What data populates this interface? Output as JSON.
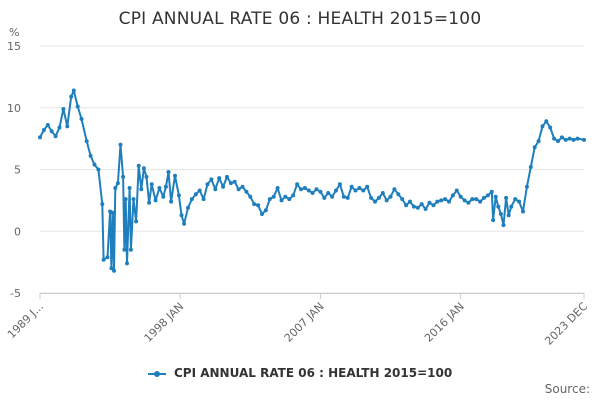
{
  "title": "CPI ANNUAL RATE 06 : HEALTH 2015=100",
  "unit": "%",
  "source_label": "Source:",
  "colors": {
    "series": "#1f7fbd",
    "grid": "#e6e6e6",
    "axis": "#cccccc"
  },
  "chart_data": {
    "type": "line",
    "title": "CPI ANNUAL RATE 06 : HEALTH 2015=100",
    "ylabel": "%",
    "xlabel": "",
    "ylim": [
      -5,
      15
    ],
    "yticks": [
      -5,
      0,
      5,
      10,
      15
    ],
    "xlim": [
      "1989-01",
      "2023-12"
    ],
    "xticks": [
      {
        "date": "1989-01",
        "label": "1989 J..."
      },
      {
        "date": "1998-01",
        "label": "1998 JAN"
      },
      {
        "date": "2007-01",
        "label": "2007 JAN"
      },
      {
        "date": "2016-01",
        "label": "2016 JAN"
      },
      {
        "date": "2023-12",
        "label": "2023 DEC"
      }
    ],
    "grid": true,
    "legend": "bottom",
    "series": [
      {
        "name": "CPI ANNUAL RATE 06 : HEALTH 2015=100",
        "color": "#1f7fbd",
        "points": [
          [
            "1989-01",
            7.6
          ],
          [
            "1989-04",
            8.2
          ],
          [
            "1989-07",
            8.6
          ],
          [
            "1989-10",
            8.1
          ],
          [
            "1990-01",
            7.7
          ],
          [
            "1990-04",
            8.4
          ],
          [
            "1990-07",
            9.9
          ],
          [
            "1990-10",
            8.5
          ],
          [
            "1991-01",
            10.9
          ],
          [
            "1991-03",
            11.4
          ],
          [
            "1991-06",
            10.1
          ],
          [
            "1991-09",
            9.1
          ],
          [
            "1992-01",
            7.3
          ],
          [
            "1992-04",
            6.1
          ],
          [
            "1992-07",
            5.4
          ],
          [
            "1992-10",
            5.0
          ],
          [
            "1993-01",
            2.2
          ],
          [
            "1993-02",
            -2.3
          ],
          [
            "1993-05",
            -2.1
          ],
          [
            "1993-07",
            1.6
          ],
          [
            "1993-08",
            -3.0
          ],
          [
            "1993-09",
            1.5
          ],
          [
            "1993-10",
            -3.2
          ],
          [
            "1993-11",
            3.5
          ],
          [
            "1994-01",
            3.9
          ],
          [
            "1994-03",
            7.0
          ],
          [
            "1994-05",
            4.4
          ],
          [
            "1994-06",
            -1.5
          ],
          [
            "1994-07",
            2.6
          ],
          [
            "1994-08",
            -2.6
          ],
          [
            "1994-10",
            3.5
          ],
          [
            "1994-11",
            -1.5
          ],
          [
            "1995-01",
            2.6
          ],
          [
            "1995-03",
            0.8
          ],
          [
            "1995-05",
            5.3
          ],
          [
            "1995-07",
            3.4
          ],
          [
            "1995-09",
            5.1
          ],
          [
            "1995-11",
            4.4
          ],
          [
            "1996-01",
            2.3
          ],
          [
            "1996-03",
            3.8
          ],
          [
            "1996-06",
            2.5
          ],
          [
            "1996-09",
            3.5
          ],
          [
            "1996-12",
            2.8
          ],
          [
            "1997-02",
            3.6
          ],
          [
            "1997-04",
            4.8
          ],
          [
            "1997-06",
            2.4
          ],
          [
            "1997-09",
            4.5
          ],
          [
            "1997-12",
            2.9
          ],
          [
            "1998-02",
            1.3
          ],
          [
            "1998-04",
            0.6
          ],
          [
            "1998-07",
            1.9
          ],
          [
            "1998-10",
            2.6
          ],
          [
            "1999-01",
            3.0
          ],
          [
            "1999-04",
            3.3
          ],
          [
            "1999-07",
            2.6
          ],
          [
            "1999-10",
            3.8
          ],
          [
            "2000-01",
            4.2
          ],
          [
            "2000-04",
            3.4
          ],
          [
            "2000-07",
            4.3
          ],
          [
            "2000-10",
            3.6
          ],
          [
            "2001-01",
            4.4
          ],
          [
            "2001-04",
            3.9
          ],
          [
            "2001-07",
            4.0
          ],
          [
            "2001-10",
            3.4
          ],
          [
            "2002-01",
            3.6
          ],
          [
            "2002-04",
            3.2
          ],
          [
            "2002-07",
            2.8
          ],
          [
            "2002-10",
            2.2
          ],
          [
            "2003-01",
            2.1
          ],
          [
            "2003-04",
            1.4
          ],
          [
            "2003-07",
            1.7
          ],
          [
            "2003-10",
            2.6
          ],
          [
            "2004-01",
            2.8
          ],
          [
            "2004-04",
            3.5
          ],
          [
            "2004-07",
            2.5
          ],
          [
            "2004-10",
            2.8
          ],
          [
            "2005-01",
            2.6
          ],
          [
            "2005-04",
            2.9
          ],
          [
            "2005-07",
            3.8
          ],
          [
            "2005-10",
            3.4
          ],
          [
            "2006-01",
            3.5
          ],
          [
            "2006-04",
            3.3
          ],
          [
            "2006-07",
            3.1
          ],
          [
            "2006-10",
            3.4
          ],
          [
            "2007-01",
            3.2
          ],
          [
            "2007-04",
            2.7
          ],
          [
            "2007-07",
            3.1
          ],
          [
            "2007-10",
            2.8
          ],
          [
            "2008-01",
            3.3
          ],
          [
            "2008-04",
            3.8
          ],
          [
            "2008-07",
            2.8
          ],
          [
            "2008-10",
            2.7
          ],
          [
            "2009-01",
            3.6
          ],
          [
            "2009-04",
            3.3
          ],
          [
            "2009-07",
            3.5
          ],
          [
            "2009-10",
            3.3
          ],
          [
            "2010-01",
            3.6
          ],
          [
            "2010-04",
            2.7
          ],
          [
            "2010-07",
            2.4
          ],
          [
            "2010-10",
            2.7
          ],
          [
            "2011-01",
            3.1
          ],
          [
            "2011-04",
            2.5
          ],
          [
            "2011-07",
            2.8
          ],
          [
            "2011-10",
            3.4
          ],
          [
            "2012-01",
            3.0
          ],
          [
            "2012-04",
            2.6
          ],
          [
            "2012-07",
            2.1
          ],
          [
            "2012-10",
            2.4
          ],
          [
            "2013-01",
            2.0
          ],
          [
            "2013-04",
            1.9
          ],
          [
            "2013-07",
            2.2
          ],
          [
            "2013-10",
            1.8
          ],
          [
            "2014-01",
            2.3
          ],
          [
            "2014-04",
            2.1
          ],
          [
            "2014-07",
            2.4
          ],
          [
            "2014-10",
            2.5
          ],
          [
            "2015-01",
            2.6
          ],
          [
            "2015-04",
            2.4
          ],
          [
            "2015-07",
            2.9
          ],
          [
            "2015-10",
            3.3
          ],
          [
            "2016-01",
            2.8
          ],
          [
            "2016-04",
            2.5
          ],
          [
            "2016-07",
            2.3
          ],
          [
            "2016-10",
            2.6
          ],
          [
            "2017-01",
            2.6
          ],
          [
            "2017-04",
            2.4
          ],
          [
            "2017-07",
            2.7
          ],
          [
            "2017-10",
            2.9
          ],
          [
            "2018-01",
            3.2
          ],
          [
            "2018-02",
            0.9
          ],
          [
            "2018-04",
            2.8
          ],
          [
            "2018-06",
            2.0
          ],
          [
            "2018-08",
            1.4
          ],
          [
            "2018-10",
            0.5
          ],
          [
            "2018-12",
            2.7
          ],
          [
            "2019-02",
            1.3
          ],
          [
            "2019-04",
            2.0
          ],
          [
            "2019-07",
            2.6
          ],
          [
            "2019-10",
            2.4
          ],
          [
            "2020-01",
            1.6
          ],
          [
            "2020-04",
            3.6
          ],
          [
            "2020-07",
            5.2
          ],
          [
            "2020-10",
            6.8
          ],
          [
            "2021-01",
            7.3
          ],
          [
            "2021-04",
            8.5
          ],
          [
            "2021-07",
            8.9
          ],
          [
            "2021-10",
            8.4
          ],
          [
            "2022-01",
            7.5
          ],
          [
            "2022-04",
            7.3
          ],
          [
            "2022-07",
            7.6
          ],
          [
            "2022-10",
            7.4
          ],
          [
            "2023-01",
            7.5
          ],
          [
            "2023-04",
            7.4
          ],
          [
            "2023-07",
            7.5
          ],
          [
            "2023-12",
            7.4
          ]
        ]
      }
    ]
  }
}
